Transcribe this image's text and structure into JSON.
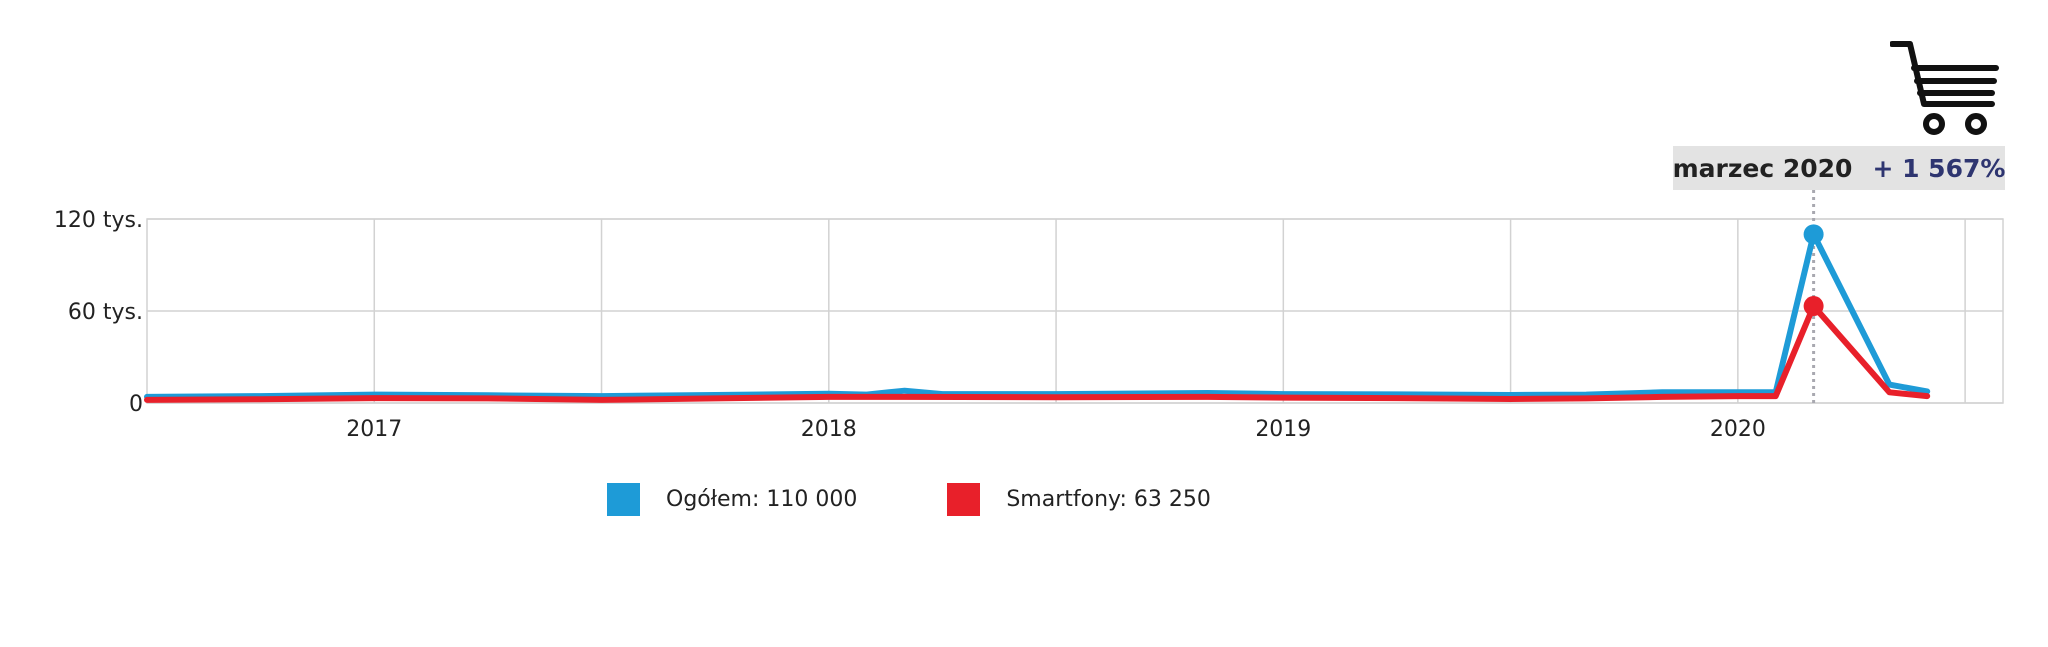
{
  "tooltip": {
    "date": "marzec 2020",
    "change": "+ 1 567%"
  },
  "icon": "shopping-cart-icon",
  "legend": [
    {
      "label": "Ogółem: 110 000",
      "color": "#1e9bd7"
    },
    {
      "label": "Smartfony: 63 250",
      "color": "#e8202a"
    }
  ],
  "chart_data": {
    "type": "line",
    "title": "",
    "xlabel": "",
    "ylabel": "",
    "ylim": [
      0,
      120000
    ],
    "xlim": [
      "2016-07",
      "2020-08"
    ],
    "grid": true,
    "yticks": [
      {
        "value": 0,
        "label": "0"
      },
      {
        "value": 60000,
        "label": "60 tys."
      },
      {
        "value": 120000,
        "label": "120 tys."
      }
    ],
    "xticks": [
      {
        "date": "2017-01",
        "label": "2017"
      },
      {
        "date": "2018-01",
        "label": "2018"
      },
      {
        "date": "2019-01",
        "label": "2019"
      },
      {
        "date": "2020-01",
        "label": "2020"
      }
    ],
    "highlight": {
      "date": "2020-03"
    },
    "series": [
      {
        "name": "Ogółem",
        "color": "#1e9bd7",
        "points": [
          [
            "2016-07",
            4000
          ],
          [
            "2016-10",
            4500
          ],
          [
            "2017-01",
            5500
          ],
          [
            "2017-04",
            5000
          ],
          [
            "2017-07",
            4500
          ],
          [
            "2017-10",
            5200
          ],
          [
            "2018-01",
            6000
          ],
          [
            "2018-02",
            5500
          ],
          [
            "2018-03",
            8000
          ],
          [
            "2018-04",
            5800
          ],
          [
            "2018-07",
            5800
          ],
          [
            "2018-11",
            6500
          ],
          [
            "2019-01",
            5800
          ],
          [
            "2019-04",
            5600
          ],
          [
            "2019-07",
            5200
          ],
          [
            "2019-09",
            5500
          ],
          [
            "2019-11",
            7000
          ],
          [
            "2020-01",
            7000
          ],
          [
            "2020-02",
            7000
          ],
          [
            "2020-03",
            110000
          ],
          [
            "2020-05",
            12000
          ],
          [
            "2020-06",
            7500
          ]
        ]
      },
      {
        "name": "Smartfony",
        "color": "#e8202a",
        "points": [
          [
            "2016-07",
            2000
          ],
          [
            "2016-10",
            2500
          ],
          [
            "2017-01",
            3200
          ],
          [
            "2017-04",
            3000
          ],
          [
            "2017-07",
            2000
          ],
          [
            "2017-10",
            3000
          ],
          [
            "2018-01",
            4000
          ],
          [
            "2018-03",
            4000
          ],
          [
            "2018-07",
            3800
          ],
          [
            "2018-11",
            4000
          ],
          [
            "2019-01",
            3500
          ],
          [
            "2019-04",
            3200
          ],
          [
            "2019-07",
            2600
          ],
          [
            "2019-09",
            3000
          ],
          [
            "2019-11",
            4000
          ],
          [
            "2020-01",
            4500
          ],
          [
            "2020-02",
            4500
          ],
          [
            "2020-03",
            63250
          ],
          [
            "2020-05",
            7000
          ],
          [
            "2020-06",
            4500
          ]
        ]
      }
    ]
  }
}
